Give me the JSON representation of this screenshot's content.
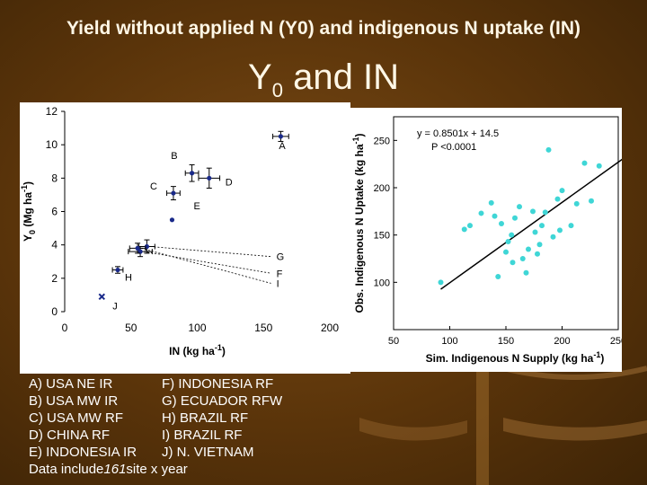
{
  "header": {
    "subtitle": "Yield without applied N (Y0) and indigenous N uptake (IN)",
    "title_main": "Y",
    "title_sub": "0",
    "title_rest": " and IN"
  },
  "chart_data": [
    {
      "type": "scatter",
      "ylabel_main": "Y",
      "ylabel_sub": "0",
      "ylabel_rest": " (Mg ha",
      "ylabel_sup": "-1",
      "ylabel_close": ")",
      "xlabel_main": "IN (kg ha",
      "xlabel_sup": "-1",
      "xlabel_close": ")",
      "xlim": [
        0,
        200
      ],
      "ylim": [
        0,
        12
      ],
      "x_ticks": [
        "0",
        "50",
        "100",
        "150",
        "200"
      ],
      "y_ticks": [
        "0",
        "2",
        "4",
        "6",
        "8",
        "10",
        "12"
      ],
      "points": [
        {
          "label": "A",
          "x": 163,
          "y": 10.5,
          "xerr": 6,
          "yerr": 0.3
        },
        {
          "label": "B",
          "x": 96,
          "y": 8.3,
          "xerr": 5,
          "yerr": 0.5
        },
        {
          "label": "C",
          "x": 82,
          "y": 7.1,
          "xerr": 5,
          "yerr": 0.4
        },
        {
          "label": "D",
          "x": 109,
          "y": 8.0,
          "xerr": 8,
          "yerr": 0.6
        },
        {
          "label": "E",
          "x": 81,
          "y": 5.5,
          "xerr": 0,
          "yerr": 0
        },
        {
          "label": "F",
          "x": 57,
          "y": 3.6,
          "xerr": 9,
          "yerr": 0.3
        },
        {
          "label": "G",
          "x": 62,
          "y": 3.9,
          "xerr": 6,
          "yerr": 0.4
        },
        {
          "label": "H",
          "x": 40,
          "y": 2.5,
          "xerr": 4,
          "yerr": 0.2
        },
        {
          "label": "I",
          "x": 55,
          "y": 3.8,
          "xerr": 6,
          "yerr": 0.3
        },
        {
          "label": "J",
          "x": 28,
          "y": 0.9,
          "xerr": 0,
          "yerr": 0
        }
      ]
    },
    {
      "type": "scatter",
      "equation": "y = 0.8501x + 14.5",
      "p_value": "P <0.0001",
      "xlabel_main": "Sim. Indigenous N Supply (kg ha",
      "xlabel_sup": "-1",
      "xlabel_close": ")",
      "ylabel_main": "Obs. Indigenous N Uptake (kg ha",
      "ylabel_sup": "-1",
      "ylabel_close": ")",
      "xlim": [
        50,
        250
      ],
      "ylim": [
        50,
        275
      ],
      "x_ticks": [
        "50",
        "100",
        "150",
        "200",
        "250"
      ],
      "y_ticks": [
        "100",
        "150",
        "200",
        "250"
      ],
      "fit": {
        "slope": 0.8501,
        "intercept": 14.5,
        "x_range": [
          92,
          258
        ]
      },
      "point_color": "#3fd6d6",
      "points": [
        [
          92,
          100
        ],
        [
          113,
          156
        ],
        [
          118,
          160
        ],
        [
          128,
          173
        ],
        [
          137,
          184
        ],
        [
          140,
          170
        ],
        [
          143,
          106
        ],
        [
          146,
          162
        ],
        [
          150,
          132
        ],
        [
          152,
          143
        ],
        [
          155,
          150
        ],
        [
          158,
          168
        ],
        [
          156,
          121
        ],
        [
          162,
          180
        ],
        [
          165,
          125
        ],
        [
          168,
          110
        ],
        [
          170,
          135
        ],
        [
          174,
          175
        ],
        [
          176,
          153
        ],
        [
          178,
          130
        ],
        [
          180,
          140
        ],
        [
          182,
          160
        ],
        [
          185,
          174
        ],
        [
          188,
          240
        ],
        [
          192,
          148
        ],
        [
          196,
          188
        ],
        [
          198,
          155
        ],
        [
          200,
          197
        ],
        [
          208,
          160
        ],
        [
          213,
          183
        ],
        [
          220,
          226
        ],
        [
          226,
          186
        ],
        [
          233,
          223
        ]
      ]
    }
  ],
  "legend": {
    "rows": [
      [
        "A) USA NE IR",
        "F) INDONESIA RF"
      ],
      [
        "B) USA MW IR",
        "G) ECUADOR RFW"
      ],
      [
        "C) USA MW RF",
        "H) BRAZIL RF"
      ],
      [
        "D)  CHINA RF",
        "I)  BRAZIL RF"
      ],
      [
        "E) INDONESIA IR",
        "J)  N. VIETNAM"
      ]
    ],
    "note_pre": "Data include ",
    "note_em": "161",
    "note_post": " site x year"
  }
}
